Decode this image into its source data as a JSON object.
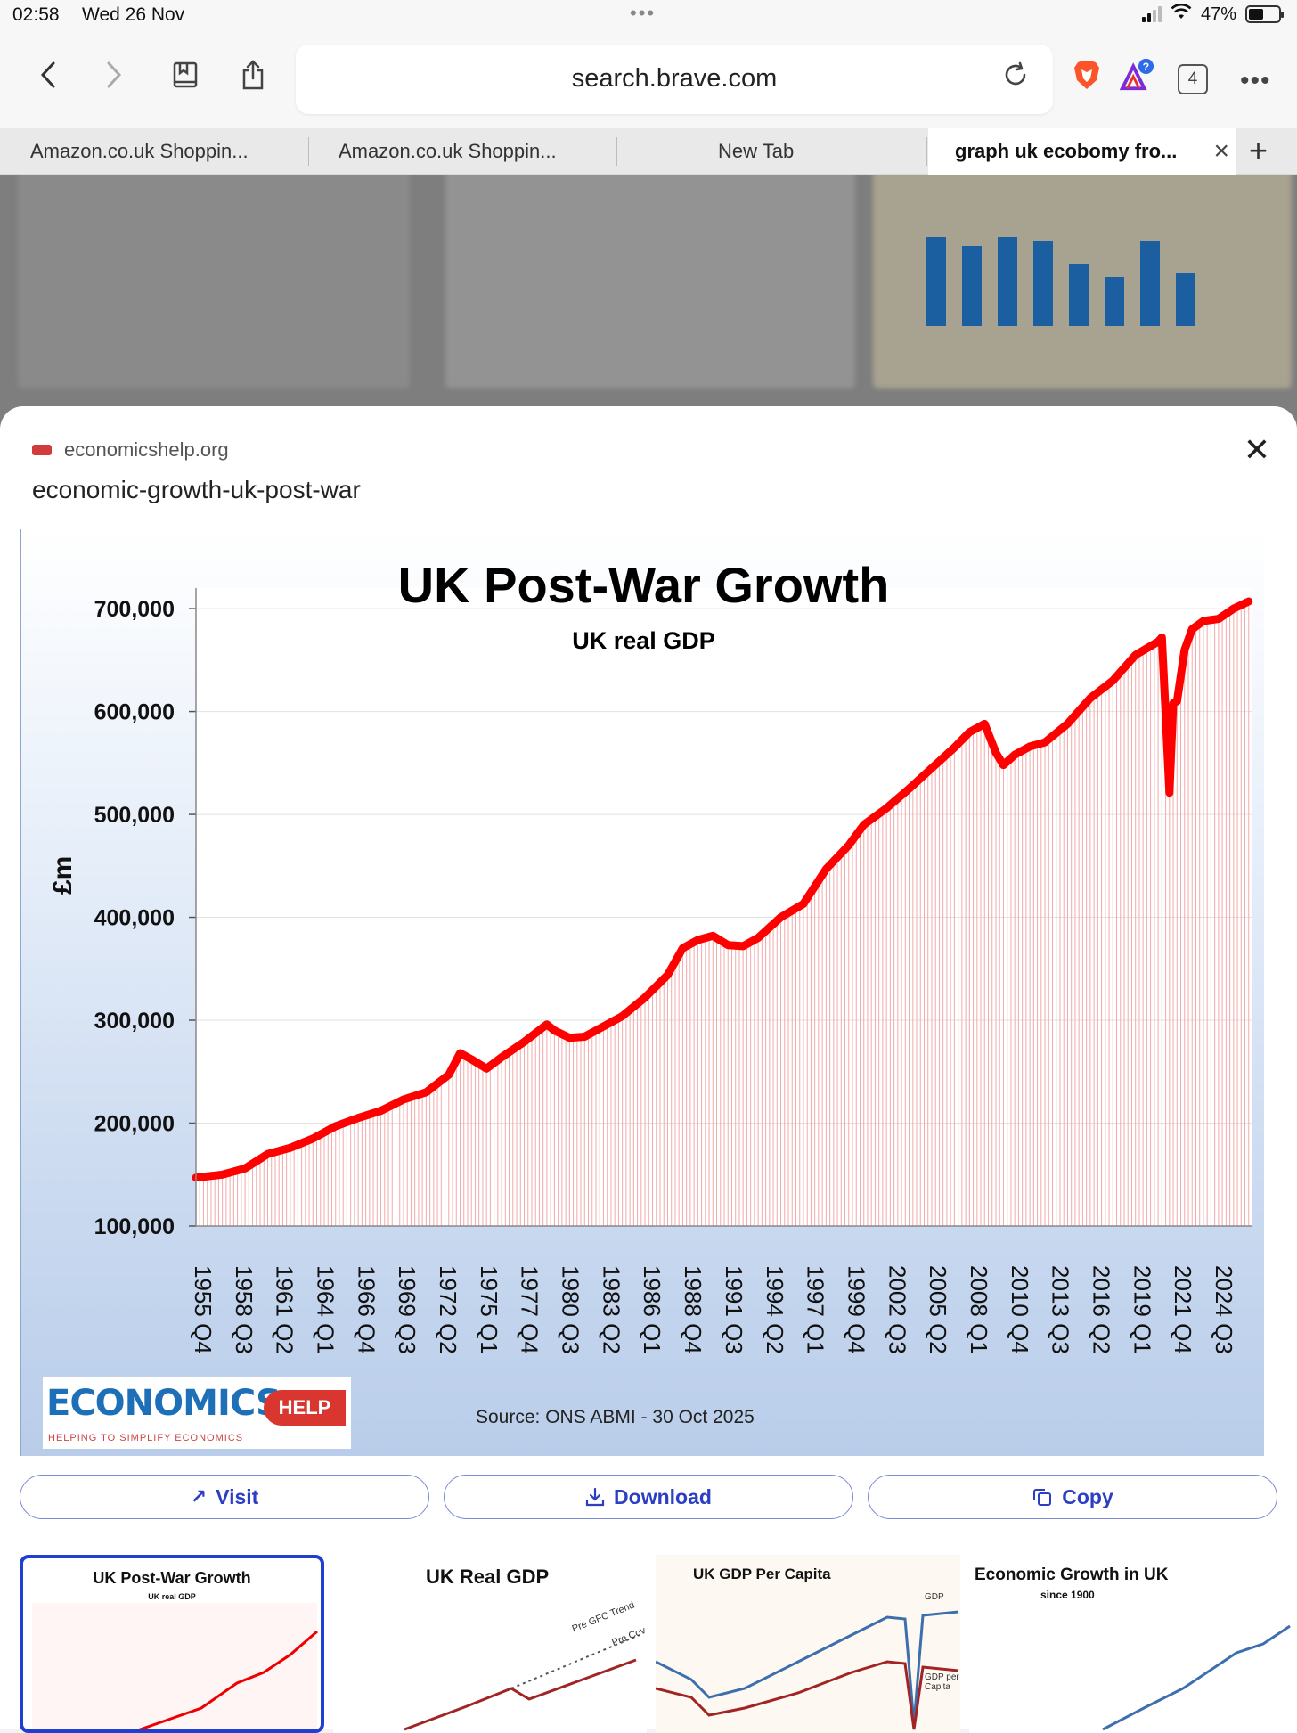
{
  "status": {
    "time": "02:58",
    "date": "Wed 26 Nov",
    "battery": "47%"
  },
  "browser": {
    "url": "search.brave.com",
    "tab_count": "4",
    "tabs": [
      {
        "label": "Amazon.co.uk Shoppin..."
      },
      {
        "label": "Amazon.co.uk Shoppin..."
      },
      {
        "label": "New Tab"
      },
      {
        "label": "graph uk ecobomy fro..."
      }
    ]
  },
  "preview": {
    "source_domain": "economicshelp.org",
    "page_title": "economic-growth-uk-post-war",
    "actions": {
      "visit": "Visit",
      "download": "Download",
      "copy": "Copy"
    }
  },
  "chart_data": {
    "type": "line",
    "title": "UK Post-War Growth",
    "subtitle": "UK real GDP",
    "ylabel": "£m",
    "ylim": [
      100000,
      720000
    ],
    "yticks": [
      "100,000",
      "200,000",
      "300,000",
      "400,000",
      "500,000",
      "600,000",
      "700,000"
    ],
    "ytick_values": [
      100000,
      200000,
      300000,
      400000,
      500000,
      600000,
      700000
    ],
    "xticks": [
      "1955 Q4",
      "1958 Q3",
      "1961 Q2",
      "1964 Q1",
      "1966 Q4",
      "1969 Q3",
      "1972 Q2",
      "1975 Q1",
      "1977 Q4",
      "1980 Q3",
      "1983 Q2",
      "1986 Q1",
      "1988 Q4",
      "1991 Q3",
      "1994 Q2",
      "1997 Q1",
      "1999 Q4",
      "2002 Q3",
      "2005 Q2",
      "2008 Q1",
      "2010 Q4",
      "2013 Q3",
      "2016 Q2",
      "2019 Q1",
      "2021 Q4",
      "2024 Q3"
    ],
    "series": [
      {
        "color": "#ff0000",
        "x": [
          1955.75,
          1957.5,
          1959.0,
          1960.5,
          1962.0,
          1963.5,
          1965.0,
          1966.5,
          1968.0,
          1969.5,
          1971.0,
          1972.5,
          1973.25,
          1974.0,
          1975.0,
          1976.0,
          1977.5,
          1979.0,
          1979.5,
          1980.5,
          1981.5,
          1982.5,
          1984.0,
          1985.5,
          1987.0,
          1988.0,
          1989.0,
          1990.0,
          1991.0,
          1992.0,
          1993.0,
          1994.5,
          1996.0,
          1997.5,
          1999.0,
          2000.0,
          2001.5,
          2003.0,
          2004.5,
          2006.0,
          2007.0,
          2008.0,
          2008.75,
          2009.25,
          2010.0,
          2011.0,
          2012.0,
          2013.5,
          2015.0,
          2016.5,
          2018.0,
          2019.5,
          2019.75,
          2020.25,
          2020.5,
          2020.75,
          2021.25,
          2021.75,
          2022.5,
          2023.5,
          2024.5,
          2025.5
        ],
        "y": [
          147000,
          150000,
          156000,
          170000,
          176000,
          185000,
          197000,
          205000,
          212000,
          223000,
          230000,
          247000,
          268000,
          262000,
          253000,
          264000,
          279000,
          296000,
          290000,
          283000,
          284000,
          292000,
          304000,
          322000,
          344000,
          370000,
          378000,
          382000,
          373000,
          372000,
          380000,
          400000,
          413000,
          447000,
          470000,
          490000,
          506000,
          525000,
          545000,
          565000,
          580000,
          588000,
          560000,
          548000,
          558000,
          566000,
          570000,
          588000,
          613000,
          630000,
          655000,
          668000,
          672000,
          521000,
          608000,
          610000,
          660000,
          680000,
          688000,
          690000,
          700000,
          707000
        ]
      }
    ],
    "source": "Source: ONS ABMI - 30 Oct 2025",
    "logo": {
      "main": "ECONOMICS",
      "badge": "HELP",
      "tagline": "HELPING TO SIMPLIFY ECONOMICS"
    }
  },
  "related": [
    {
      "title": "UK Post-War Growth",
      "subtitle": "UK real GDP"
    },
    {
      "title": "UK Real GDP",
      "labels": [
        "Pre GFC Trend",
        "Pre Cov"
      ]
    },
    {
      "title": "UK GDP Per Capita",
      "labels": [
        "GDP",
        "GDP per Capita"
      ]
    },
    {
      "title": "Economic Growth in UK",
      "subtitle": "since 1900"
    }
  ]
}
